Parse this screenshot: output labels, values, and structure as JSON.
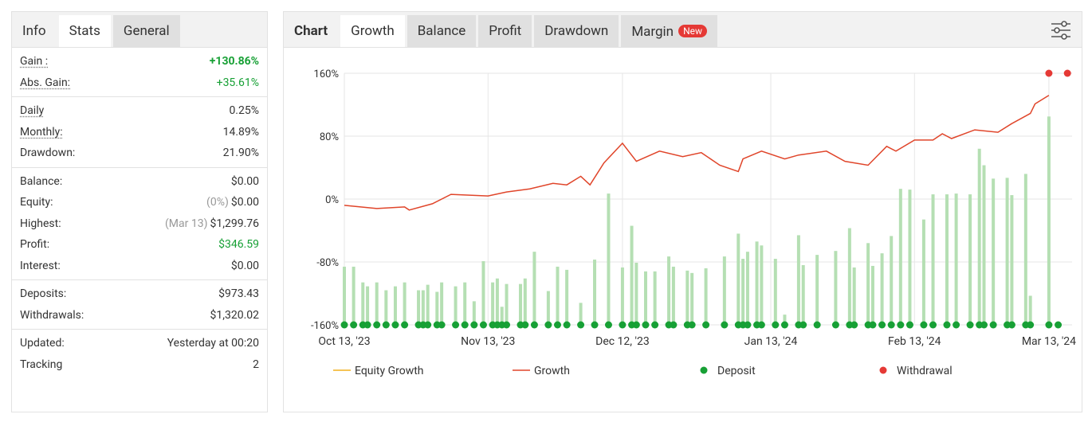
{
  "left_panel": {
    "tabs": [
      "Info",
      "Stats",
      "General"
    ],
    "active_tab": 1,
    "groups": [
      [
        {
          "label": "Gain :",
          "value": "+130.86%",
          "color": "#17a035",
          "bold": true,
          "dotted": true
        },
        {
          "label": "Abs. Gain:",
          "value": "+35.61%",
          "color": "#17a035",
          "dotted": true
        }
      ],
      [
        {
          "label": "Daily",
          "value": "0.25%",
          "dotted": true
        },
        {
          "label": "Monthly:",
          "value": "14.89%",
          "dotted": true
        },
        {
          "label": "Drawdown:",
          "value": "21.90%"
        }
      ],
      [
        {
          "label": "Balance:",
          "value": "$0.00"
        },
        {
          "label": "Equity:",
          "note": "(0%)",
          "value": "$0.00"
        },
        {
          "label": "Highest:",
          "note": "(Mar 13)",
          "value": "$1,299.76"
        },
        {
          "label": "Profit:",
          "value": "$346.59",
          "color": "#17a035"
        },
        {
          "label": "Interest:",
          "value": "$0.00"
        }
      ],
      [
        {
          "label": "Deposits:",
          "value": "$973.43"
        },
        {
          "label": "Withdrawals:",
          "value": "$1,320.02"
        }
      ],
      [
        {
          "label": "Updated:",
          "value": "Yesterday at 00:20"
        },
        {
          "label": "Tracking",
          "value": "2"
        }
      ]
    ]
  },
  "chart_panel": {
    "heading": "Chart",
    "tabs": [
      "Growth",
      "Balance",
      "Profit",
      "Drawdown",
      "Margin"
    ],
    "active_tab": 0,
    "badge": "New",
    "badge_tab": 4
  },
  "chart_data": {
    "type": "line",
    "xlim": [
      "2023-10-13",
      "2024-03-18"
    ],
    "xticks": [
      {
        "value": "2023-10-13",
        "label": "Oct 13, '23"
      },
      {
        "value": "2023-11-13",
        "label": "Nov 13, '23"
      },
      {
        "value": "2023-12-12",
        "label": "Dec 12, '23"
      },
      {
        "value": "2024-01-13",
        "label": "Jan 13, '24"
      },
      {
        "value": "2024-02-13",
        "label": "Feb 13, '24"
      },
      {
        "value": "2024-03-13",
        "label": "Mar 13, '24"
      }
    ],
    "ylim": [
      -160,
      160
    ],
    "yticks": [
      {
        "value": 160,
        "label": "160%"
      },
      {
        "value": 80,
        "label": "80%"
      },
      {
        "value": 0,
        "label": "0%"
      },
      {
        "value": -80,
        "label": "-80%"
      },
      {
        "value": -160,
        "label": "-160%"
      }
    ],
    "grid": true,
    "series": [
      {
        "name": "Equity Growth",
        "color": "#f2b01e",
        "x": [],
        "values": []
      },
      {
        "name": "Growth",
        "color": "#e0452a",
        "x": [
          "2023-10-13",
          "2023-10-20",
          "2023-10-26",
          "2023-10-27",
          "2023-11-01",
          "2023-11-05",
          "2023-11-13",
          "2023-11-17",
          "2023-11-22",
          "2023-11-27",
          "2023-11-30",
          "2023-12-03",
          "2023-12-05",
          "2023-12-08",
          "2023-12-12",
          "2023-12-15",
          "2023-12-20",
          "2023-12-25",
          "2023-12-29",
          "2024-01-02",
          "2024-01-06",
          "2024-01-07",
          "2024-01-11",
          "2024-01-16",
          "2024-01-19",
          "2024-01-25",
          "2024-01-29",
          "2024-02-03",
          "2024-02-07",
          "2024-02-09",
          "2024-02-13",
          "2024-02-17",
          "2024-02-19",
          "2024-02-21",
          "2024-02-26",
          "2024-03-02",
          "2024-03-05",
          "2024-03-09",
          "2024-03-10",
          "2024-03-13"
        ],
        "values": [
          -8,
          -12,
          -10,
          -14,
          -6,
          6,
          4,
          9,
          13,
          20,
          18,
          29,
          18,
          46,
          71,
          48,
          61,
          54,
          59,
          43,
          35,
          51,
          61,
          51,
          56,
          61,
          48,
          43,
          67,
          61,
          75,
          75,
          83,
          77,
          88,
          85,
          96,
          109,
          121,
          132
        ]
      },
      {
        "name": "Deposit",
        "color": "#17a035",
        "marker": "dot",
        "x": [
          "2023-10-13",
          "2023-10-15",
          "2023-10-17",
          "2023-10-18",
          "2023-10-20",
          "2023-10-22",
          "2023-10-24",
          "2023-10-26",
          "2023-10-29",
          "2023-10-30",
          "2023-10-31",
          "2023-11-02",
          "2023-11-03",
          "2023-11-06",
          "2023-11-08",
          "2023-11-10",
          "2023-11-12",
          "2023-11-14",
          "2023-11-15",
          "2023-11-16",
          "2023-11-17",
          "2023-11-20",
          "2023-11-21",
          "2023-11-23",
          "2023-11-26",
          "2023-11-28",
          "2023-11-30",
          "2023-12-03",
          "2023-12-06",
          "2023-12-09",
          "2023-12-12",
          "2023-12-14",
          "2023-12-15",
          "2023-12-17",
          "2023-12-19",
          "2023-12-22",
          "2023-12-23",
          "2023-12-26",
          "2023-12-27",
          "2023-12-30",
          "2024-01-03",
          "2024-01-06",
          "2024-01-07",
          "2024-01-08",
          "2024-01-10",
          "2024-01-11",
          "2024-01-14",
          "2024-01-16",
          "2024-01-19",
          "2024-01-20",
          "2024-01-23",
          "2024-01-27",
          "2024-01-30",
          "2024-01-31",
          "2024-02-03",
          "2024-02-04",
          "2024-02-06",
          "2024-02-08",
          "2024-02-10",
          "2024-02-12",
          "2024-02-15",
          "2024-02-17",
          "2024-02-20",
          "2024-02-22",
          "2024-02-25",
          "2024-02-27",
          "2024-02-28",
          "2024-03-01",
          "2024-03-04",
          "2024-03-05",
          "2024-03-08",
          "2024-03-09",
          "2024-03-13",
          "2024-03-15"
        ],
        "values": [
          -160,
          -160,
          -160,
          -160,
          -160,
          -160,
          -160,
          -160,
          -160,
          -160,
          -160,
          -160,
          -160,
          -160,
          -160,
          -160,
          -160,
          -160,
          -160,
          -160,
          -160,
          -160,
          -160,
          -160,
          -160,
          -160,
          -160,
          -160,
          -160,
          -160,
          -160,
          -160,
          -160,
          -160,
          -160,
          -160,
          -160,
          -160,
          -160,
          -160,
          -160,
          -160,
          -160,
          -160,
          -160,
          -160,
          -160,
          -160,
          -160,
          -160,
          -160,
          -160,
          -160,
          -160,
          -160,
          -160,
          -160,
          -160,
          -160,
          -160,
          -160,
          -160,
          -160,
          -160,
          -160,
          -160,
          -160,
          -160,
          -160,
          -160,
          -160,
          -160,
          -160,
          -160
        ]
      },
      {
        "name": "Withdrawal",
        "color": "#e53935",
        "marker": "dot",
        "x": [
          "2024-03-13",
          "2024-03-17"
        ],
        "values": [
          160,
          160
        ]
      },
      {
        "type": "bar",
        "color": "#b5dfb3",
        "x": [
          "2023-10-13",
          "2023-10-15",
          "2023-10-17",
          "2023-10-18",
          "2023-10-20",
          "2023-10-22",
          "2023-10-24",
          "2023-10-26",
          "2023-10-29",
          "2023-10-30",
          "2023-10-31",
          "2023-11-02",
          "2023-11-03",
          "2023-11-06",
          "2023-11-08",
          "2023-11-10",
          "2023-11-12",
          "2023-11-14",
          "2023-11-15",
          "2023-11-16",
          "2023-11-17",
          "2023-11-20",
          "2023-11-21",
          "2023-11-23",
          "2023-11-26",
          "2023-11-28",
          "2023-11-30",
          "2023-12-03",
          "2023-12-06",
          "2023-12-09",
          "2023-12-12",
          "2023-12-14",
          "2023-12-15",
          "2023-12-17",
          "2023-12-19",
          "2023-12-22",
          "2023-12-23",
          "2023-12-26",
          "2023-12-27",
          "2023-12-30",
          "2024-01-03",
          "2024-01-06",
          "2024-01-07",
          "2024-01-08",
          "2024-01-10",
          "2024-01-11",
          "2024-01-14",
          "2024-01-16",
          "2024-01-19",
          "2024-01-20",
          "2024-01-23",
          "2024-01-27",
          "2024-01-30",
          "2024-01-31",
          "2024-02-03",
          "2024-02-04",
          "2024-02-06",
          "2024-02-08",
          "2024-02-10",
          "2024-02-12",
          "2024-02-15",
          "2024-02-17",
          "2024-02-20",
          "2024-02-22",
          "2024-02-25",
          "2024-02-27",
          "2024-02-28",
          "2024-03-01",
          "2024-03-04",
          "2024-03-05",
          "2024-03-08",
          "2024-03-09",
          "2024-03-13"
        ],
        "values": [
          -86,
          -86,
          -106,
          -111,
          -106,
          -116,
          -111,
          -106,
          -116,
          -116,
          -109,
          -118,
          -106,
          -111,
          -106,
          -130,
          -79,
          -106,
          -101,
          -137,
          -108,
          -108,
          -101,
          -67,
          -117,
          -86,
          -90,
          -132,
          -77,
          7,
          -87,
          -34,
          -81,
          -92,
          -92,
          -73,
          -86,
          -91,
          -94,
          -88,
          -73,
          -44,
          -76,
          -67,
          -54,
          -59,
          -76,
          -147,
          -46,
          -84,
          -71,
          -66,
          -37,
          -87,
          -56,
          -85,
          -69,
          -47,
          13,
          12,
          -26,
          6,
          6,
          7,
          6,
          64,
          43,
          26,
          27,
          5,
          32,
          -123,
          105
        ]
      }
    ]
  }
}
